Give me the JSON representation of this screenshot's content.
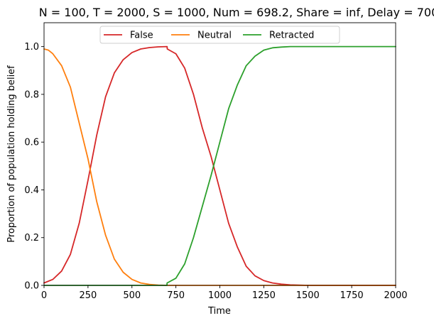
{
  "chart_data": {
    "type": "line",
    "title": "N = 100, T = 2000, S = 1000, Num = 698.2, Share = inf, Delay = 700",
    "xlabel": "Time",
    "ylabel": "Proportion of population holding belief",
    "xlim": [
      0,
      2000
    ],
    "ylim": [
      0,
      1.1
    ],
    "xticks": [
      0,
      250,
      500,
      750,
      1000,
      1250,
      1500,
      1750,
      2000
    ],
    "yticks": [
      0.0,
      0.2,
      0.4,
      0.6,
      0.8,
      1.0
    ],
    "xtick_labels": [
      "0",
      "250",
      "500",
      "750",
      "1000",
      "1250",
      "1500",
      "1750",
      "2000"
    ],
    "ytick_labels": [
      "0.0",
      "0.2",
      "0.4",
      "0.6",
      "0.8",
      "1.0"
    ],
    "grid": false,
    "legend_position": "top-center",
    "series": [
      {
        "name": "False",
        "color": "#d62728",
        "x": [
          0,
          50,
          100,
          150,
          200,
          250,
          300,
          350,
          400,
          450,
          500,
          550,
          600,
          650,
          700,
          701,
          750,
          800,
          850,
          900,
          950,
          1000,
          1050,
          1100,
          1150,
          1200,
          1250,
          1300,
          1350,
          1400,
          1500,
          1750,
          2000
        ],
        "values": [
          0.01,
          0.025,
          0.06,
          0.13,
          0.26,
          0.44,
          0.63,
          0.79,
          0.89,
          0.945,
          0.975,
          0.99,
          0.996,
          0.999,
          1.0,
          0.99,
          0.97,
          0.91,
          0.8,
          0.66,
          0.54,
          0.4,
          0.26,
          0.16,
          0.08,
          0.04,
          0.02,
          0.01,
          0.005,
          0.002,
          0.0,
          0.0,
          0.0
        ]
      },
      {
        "name": "Neutral",
        "color": "#ff7f0e",
        "x": [
          0,
          25,
          50,
          100,
          150,
          200,
          250,
          300,
          350,
          400,
          450,
          500,
          550,
          600,
          650,
          700,
          800,
          1000,
          1500,
          2000
        ],
        "values": [
          0.99,
          0.985,
          0.97,
          0.92,
          0.83,
          0.68,
          0.53,
          0.35,
          0.21,
          0.11,
          0.055,
          0.025,
          0.01,
          0.004,
          0.001,
          0.0,
          0.0,
          0.0,
          0.0,
          0.0
        ]
      },
      {
        "name": "Retracted",
        "color": "#2ca02c",
        "x": [
          0,
          699,
          700,
          750,
          800,
          850,
          900,
          950,
          1000,
          1050,
          1100,
          1150,
          1200,
          1250,
          1300,
          1350,
          1400,
          1500,
          1750,
          2000
        ],
        "values": [
          0.0,
          0.0,
          0.01,
          0.03,
          0.09,
          0.2,
          0.33,
          0.46,
          0.6,
          0.74,
          0.84,
          0.92,
          0.96,
          0.985,
          0.995,
          0.998,
          1.0,
          1.0,
          1.0,
          1.0
        ]
      }
    ]
  }
}
